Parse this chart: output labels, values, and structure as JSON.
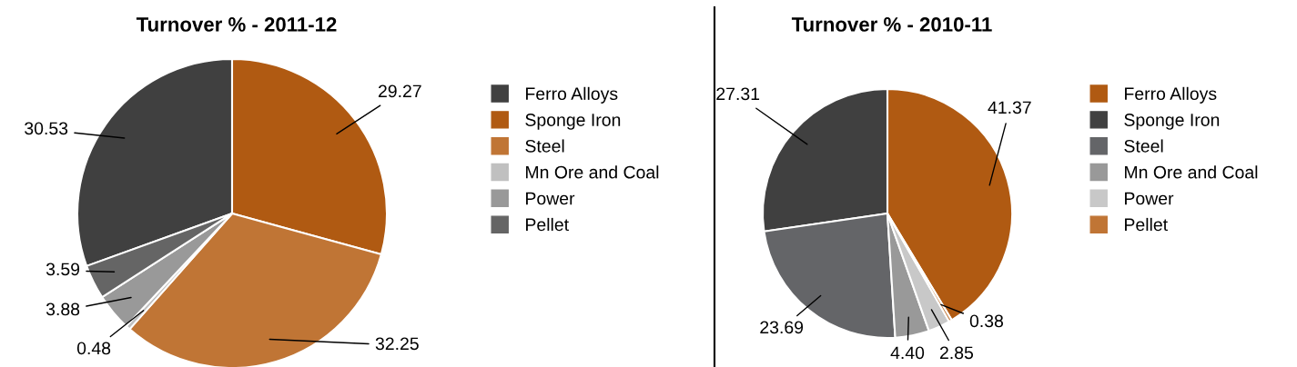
{
  "chart_data": [
    {
      "type": "pie",
      "title": "Turnover % - 2011-12",
      "categories": [
        "Ferro Alloys",
        "Sponge Iron",
        "Steel",
        "Mn Ore and Coal",
        "Power",
        "Pellet"
      ],
      "values": [
        30.53,
        29.27,
        32.25,
        0.48,
        3.88,
        3.59
      ],
      "colors": [
        "#404040",
        "#b05a12",
        "#c07535",
        "#c0c0c0",
        "#999999",
        "#656565"
      ],
      "value_labels": [
        "30.53",
        "29.27",
        "32.25",
        "0.48",
        "3.88",
        "3.59"
      ],
      "legend": "right"
    },
    {
      "type": "pie",
      "title": "Turnover % - 2010-11",
      "categories": [
        "Ferro Alloys",
        "Sponge Iron",
        "Steel",
        "Mn Ore and Coal",
        "Power",
        "Pellet"
      ],
      "values": [
        41.37,
        27.31,
        23.69,
        4.4,
        2.85,
        0.38
      ],
      "colors": [
        "#b05a12",
        "#404040",
        "#646568",
        "#999999",
        "#c8c8c8",
        "#c07535"
      ],
      "value_labels": [
        "41.37",
        "27.31",
        "23.69",
        "4.40",
        "2.85",
        "0.38"
      ],
      "legend": "right"
    }
  ]
}
